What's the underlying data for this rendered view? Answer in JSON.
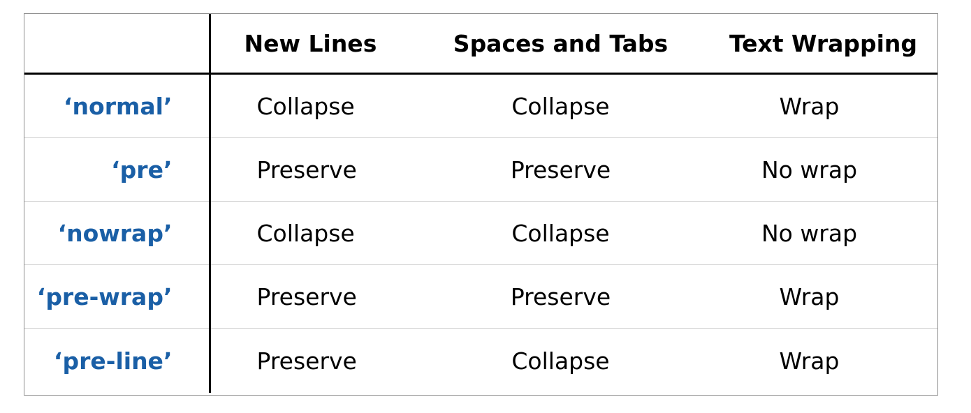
{
  "table": {
    "headers": [
      "",
      "New Lines",
      "Spaces and Tabs",
      "Text Wrapping"
    ],
    "rows": [
      {
        "name": "normal",
        "new_lines": "Collapse",
        "spaces_tabs": "Collapse",
        "text_wrapping": "Wrap"
      },
      {
        "name": "pre",
        "new_lines": "Preserve",
        "spaces_tabs": "Preserve",
        "text_wrapping": "No wrap"
      },
      {
        "name": "nowrap",
        "new_lines": "Collapse",
        "spaces_tabs": "Collapse",
        "text_wrapping": "No wrap"
      },
      {
        "name": "pre-wrap",
        "new_lines": "Preserve",
        "spaces_tabs": "Preserve",
        "text_wrapping": "Wrap"
      },
      {
        "name": "pre-line",
        "new_lines": "Preserve",
        "spaces_tabs": "Collapse",
        "text_wrapping": "Wrap"
      }
    ],
    "name_color": "#1a5fa6"
  }
}
